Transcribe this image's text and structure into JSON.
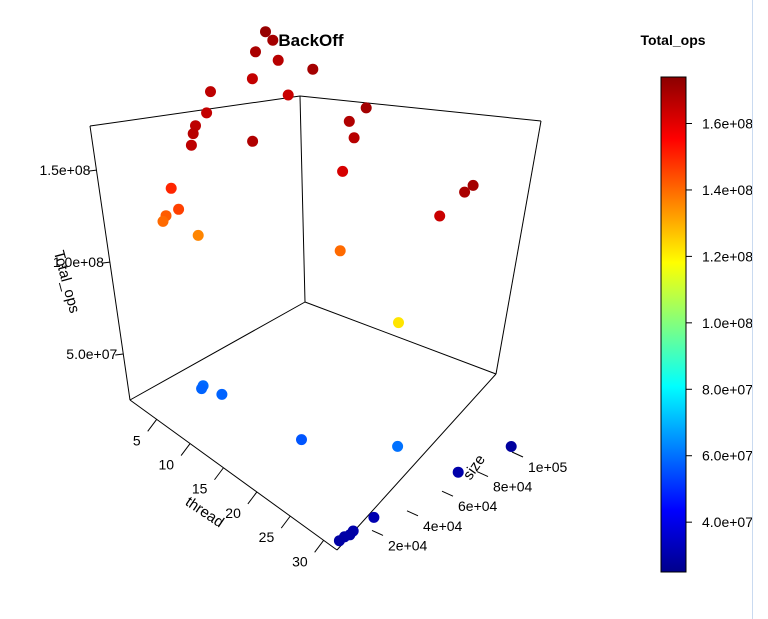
{
  "chart_data": {
    "type": "scatter",
    "title": "BackOff",
    "xlabel": "thread",
    "ylabel": "size",
    "zlabel": "Total_ops",
    "x_ticks": [
      "5",
      "10",
      "15",
      "20",
      "25",
      "30"
    ],
    "y_ticks": [
      "2e+04",
      "4e+04",
      "6e+04",
      "8e+04",
      "1e+05"
    ],
    "z_ticks": [
      "5.0e+07",
      "1.0e+08",
      "1.5e+08"
    ],
    "colorbar": {
      "title": "Total_ops",
      "range": [
        25000000,
        174000000
      ],
      "ticks": [
        "4.0e+07",
        "6.0e+07",
        "8.0e+07",
        "1.0e+08",
        "1.2e+08",
        "1.4e+08",
        "1.6e+08"
      ],
      "palette": [
        "#00008b",
        "#0000ff",
        "#0080ff",
        "#00ffff",
        "#80ff80",
        "#ffff00",
        "#ff8000",
        "#ff0000",
        "#8b0000"
      ]
    },
    "points": [
      {
        "thread": 1,
        "size": 100000,
        "ops": 172000000
      },
      {
        "thread": 2,
        "size": 100000,
        "ops": 170000000
      },
      {
        "thread": 2,
        "size": 90000,
        "ops": 169000000
      },
      {
        "thread": 4,
        "size": 95000,
        "ops": 167000000
      },
      {
        "thread": 4,
        "size": 80000,
        "ops": 165000000
      },
      {
        "thread": 8,
        "size": 100000,
        "ops": 170000000
      },
      {
        "thread": 8,
        "size": 85000,
        "ops": 164000000
      },
      {
        "thread": 3,
        "size": 60000,
        "ops": 166000000
      },
      {
        "thread": 5,
        "size": 50000,
        "ops": 165000000
      },
      {
        "thread": 6,
        "size": 40000,
        "ops": 166000000
      },
      {
        "thread": 7,
        "size": 35000,
        "ops": 167000000
      },
      {
        "thread": 8,
        "size": 30000,
        "ops": 166000000
      },
      {
        "thread": 12,
        "size": 50000,
        "ops": 168000000
      },
      {
        "thread": 16,
        "size": 100000,
        "ops": 170000000
      },
      {
        "thread": 16,
        "size": 90000,
        "ops": 168000000
      },
      {
        "thread": 18,
        "size": 85000,
        "ops": 167000000
      },
      {
        "thread": 20,
        "size": 70000,
        "ops": 162000000
      },
      {
        "thread": 32,
        "size": 100000,
        "ops": 170000000
      },
      {
        "thread": 32,
        "size": 95000,
        "ops": 169000000
      },
      {
        "thread": 32,
        "size": 80000,
        "ops": 164000000
      },
      {
        "thread": 8,
        "size": 16000,
        "ops": 150000000
      },
      {
        "thread": 10,
        "size": 12000,
        "ops": 146000000
      },
      {
        "thread": 9,
        "size": 8000,
        "ops": 142000000
      },
      {
        "thread": 9,
        "size": 6000,
        "ops": 140000000
      },
      {
        "thread": 12,
        "size": 14000,
        "ops": 136000000
      },
      {
        "thread": 24,
        "size": 50000,
        "ops": 140000000
      },
      {
        "thread": 32,
        "size": 50000,
        "ops": 122000000
      },
      {
        "thread": 32,
        "size": 40000,
        "ops": 60000000
      },
      {
        "thread": 24,
        "size": 15000,
        "ops": 56000000
      },
      {
        "thread": 14,
        "size": 8000,
        "ops": 58000000
      },
      {
        "thread": 12,
        "size": 5000,
        "ops": 59000000
      },
      {
        "thread": 12,
        "size": 4000,
        "ops": 58000000
      },
      {
        "thread": 32,
        "size": 100000,
        "ops": 28000000
      },
      {
        "thread": 32,
        "size": 70000,
        "ops": 30000000
      },
      {
        "thread": 32,
        "size": 22000,
        "ops": 31000000
      },
      {
        "thread": 32,
        "size": 10000,
        "ops": 30000000
      },
      {
        "thread": 32,
        "size": 8000,
        "ops": 29000000
      },
      {
        "thread": 32,
        "size": 5000,
        "ops": 29500000
      },
      {
        "thread": 32,
        "size": 2000,
        "ops": 29000000
      }
    ]
  }
}
